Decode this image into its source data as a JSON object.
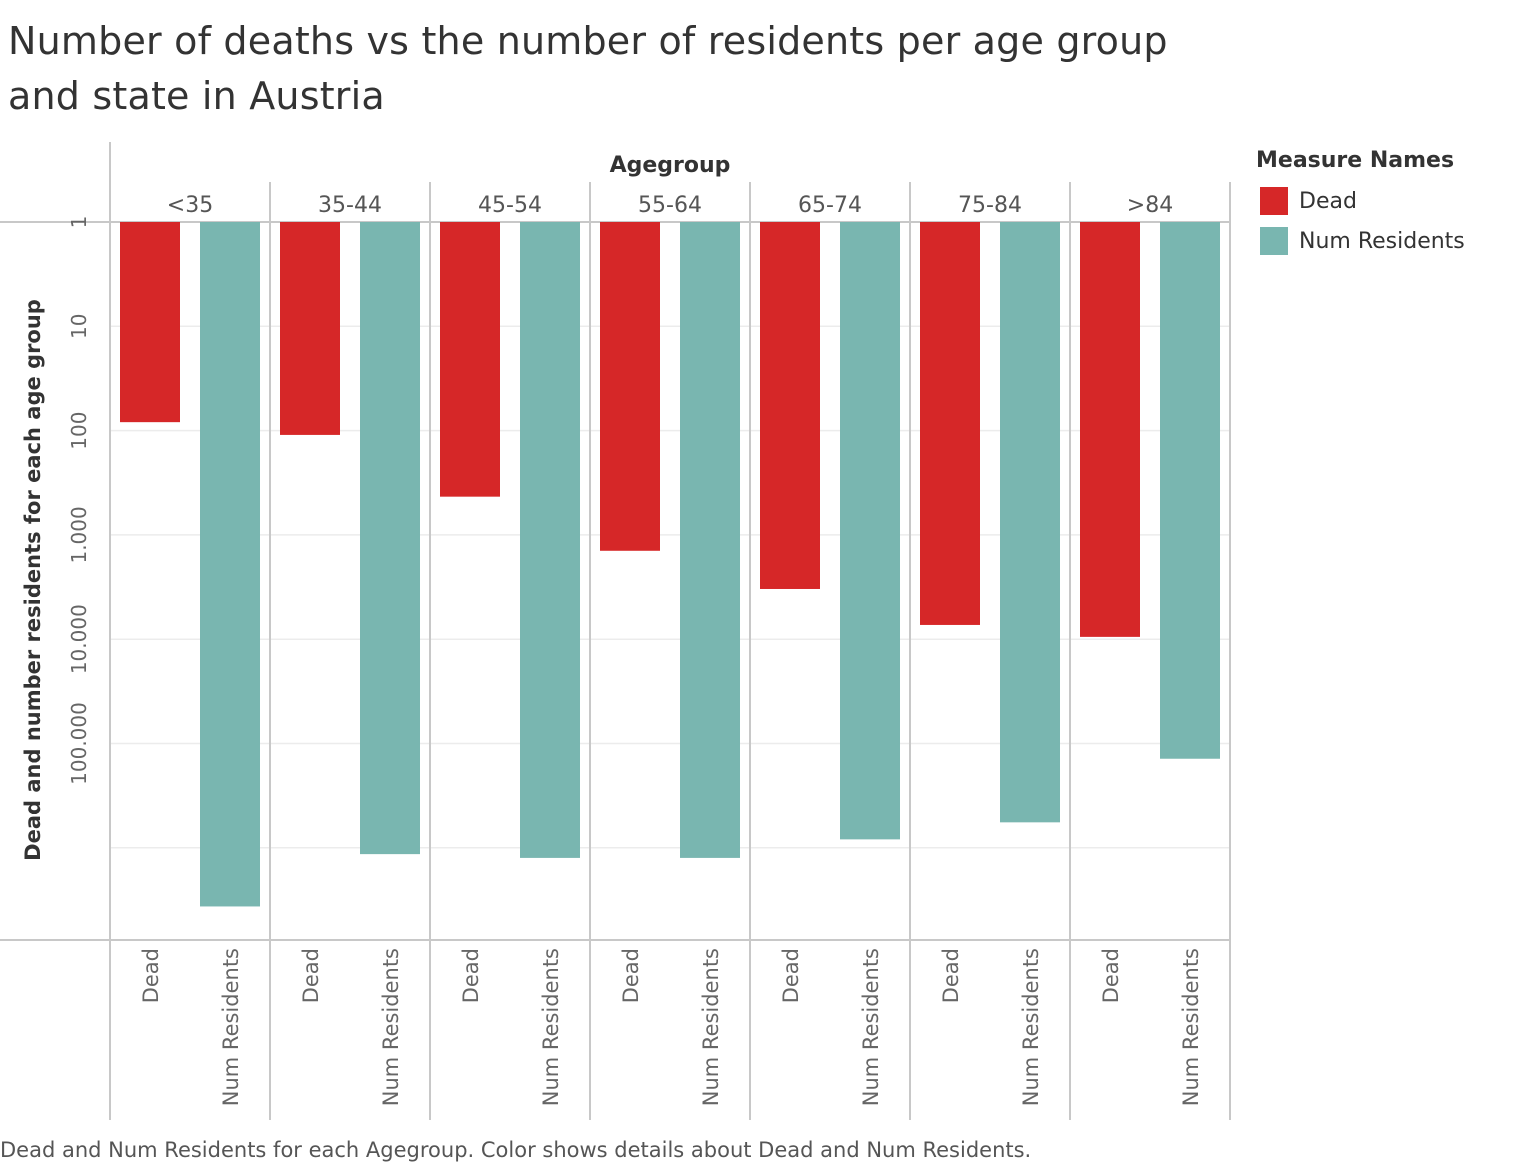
{
  "title": "Number of deaths vs the number of residents per age group and state in Austria",
  "caption": "Dead and Num Residents for each Agegroup.  Color shows details about Dead and Num Residents.",
  "legend": {
    "title": "Measure Names",
    "items": [
      {
        "label": "Dead",
        "color": "#d62728"
      },
      {
        "label": "Num Residents",
        "color": "#79b6b0"
      }
    ]
  },
  "chart_data": {
    "type": "bar",
    "column_header": "Agegroup",
    "ylabel": "Dead and number residents for each age group",
    "scale": "log",
    "axis_reversed": true,
    "ylim": [
      1,
      10000000
    ],
    "grid": true,
    "legend_position": "right",
    "yticks": [
      {
        "value": 1,
        "label": "1"
      },
      {
        "value": 10,
        "label": "10"
      },
      {
        "value": 100,
        "label": "100"
      },
      {
        "value": 1000,
        "label": "1.000"
      },
      {
        "value": 10000,
        "label": "10.000"
      },
      {
        "value": 100000,
        "label": "100.000"
      }
    ],
    "categories": [
      "<35",
      "35-44",
      "45-54",
      "55-64",
      "65-74",
      "75-84",
      ">84"
    ],
    "series": [
      {
        "name": "Dead",
        "color": "#d62728",
        "values": [
          83,
          110,
          430,
          1420,
          3300,
          7300,
          9500
        ]
      },
      {
        "name": "Num Residents",
        "color": "#79b6b0",
        "values": [
          3650000,
          1150000,
          1250000,
          1250000,
          830000,
          570000,
          140000
        ]
      }
    ]
  }
}
